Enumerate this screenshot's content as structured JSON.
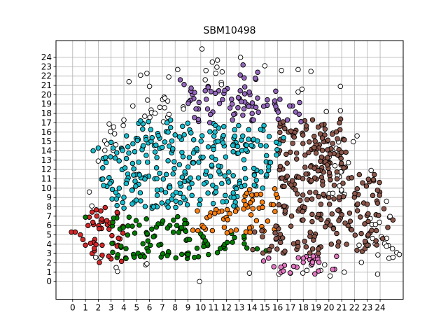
{
  "chart_data": {
    "type": "scatter",
    "title": "SBM10498",
    "xlabel": "",
    "ylabel": "",
    "xlim": [
      -1.3,
      25.8
    ],
    "ylim": [
      -1.9,
      25.8
    ],
    "x_ticks": [
      0,
      1,
      2,
      3,
      4,
      5,
      6,
      7,
      8,
      9,
      10,
      11,
      12,
      13,
      14,
      15,
      16,
      17,
      18,
      19,
      20,
      21,
      22,
      23,
      24
    ],
    "y_ticks": [
      0,
      1,
      2,
      3,
      4,
      5,
      6,
      7,
      8,
      9,
      10,
      11,
      12,
      13,
      14,
      15,
      16,
      17,
      18,
      19,
      20,
      21,
      22,
      23,
      24
    ],
    "grid": true,
    "legend": "none",
    "marker_edge_color": "#000000",
    "series": [
      {
        "color": "#d62728",
        "regions": [
          {
            "x": [
              1.5,
              4
            ],
            "y": [
              2,
              8
            ],
            "density": 2.6
          }
        ],
        "points": [
          [
            -0.1,
            5.3
          ],
          [
            0.2,
            5.3
          ],
          [
            0.6,
            5.0
          ],
          [
            0.8,
            4.5
          ],
          [
            1.0,
            3.9
          ],
          [
            1.2,
            6.0
          ],
          [
            1.3,
            6.9
          ],
          [
            1.4,
            4.1
          ]
        ]
      },
      {
        "color": "#008000",
        "regions": [
          {
            "x": [
              4,
              9
            ],
            "y": [
              2.3,
              7
            ],
            "density": 2.6
          },
          {
            "x": [
              9,
              12
            ],
            "y": [
              2.6,
              5.2
            ],
            "density": 2.4
          },
          {
            "x": [
              12,
              14.5
            ],
            "y": [
              4,
              5.2
            ],
            "density": 2.2
          },
          {
            "x": [
              3,
              4
            ],
            "y": [
              2.2,
              7
            ],
            "density": 2.2
          }
        ],
        "points": [
          [
            1.0,
            6.9
          ],
          [
            3.2,
            6.8
          ],
          [
            9.5,
            2.6
          ],
          [
            10.6,
            2.9
          ],
          [
            11.3,
            3.1
          ],
          [
            13.6,
            3.6
          ],
          [
            14.4,
            3.5
          ],
          [
            15.1,
            3.3
          ]
        ]
      },
      {
        "color": "#ff7f0e",
        "regions": [
          {
            "x": [
              9,
              13
            ],
            "y": [
              5.2,
              7.8
            ],
            "density": 2.5
          },
          {
            "x": [
              13,
              16
            ],
            "y": [
              5.2,
              10
            ],
            "density": 2.5
          }
        ],
        "points": []
      },
      {
        "color": "#e377c2",
        "regions": [
          {
            "x": [
              15.5,
              20.5
            ],
            "y": [
              0.8,
              3
            ],
            "density": 2.3
          }
        ],
        "points": [
          [
            15.3,
            2.5
          ],
          [
            14.9,
            2.2
          ],
          [
            20.3,
            1.3
          ],
          [
            20.6,
            2.7
          ]
        ]
      },
      {
        "color": "#8c564b",
        "regions": [
          {
            "x": [
              16,
              21
            ],
            "y": [
              3,
              17.5
            ],
            "density": 2.6
          },
          {
            "x": [
              21,
              24
            ],
            "y": [
              3.2,
              11.5
            ],
            "density": 2.3
          },
          {
            "x": [
              14,
              16
            ],
            "y": [
              3,
              6
            ],
            "density": 2.2
          },
          {
            "x": [
              19,
              21.5
            ],
            "y": [
              11,
              15.5
            ],
            "density": 2.2
          }
        ],
        "points": [
          [
            24.6,
            5.8
          ],
          [
            25.0,
            6.6
          ],
          [
            24.2,
            4.6
          ],
          [
            24.3,
            7.8
          ],
          [
            23.8,
            8.4
          ]
        ]
      },
      {
        "color": "#17becf",
        "regions": [
          {
            "x": [
              3,
              9
            ],
            "y": [
              7.8,
              15.5
            ],
            "density": 2.6
          },
          {
            "x": [
              9,
              13
            ],
            "y": [
              8,
              17
            ],
            "density": 2.6
          },
          {
            "x": [
              13,
              15.5
            ],
            "y": [
              10,
              17
            ],
            "density": 2.5
          },
          {
            "x": [
              5,
              9
            ],
            "y": [
              15,
              17.5
            ],
            "density": 2.3
          },
          {
            "x": [
              1.5,
              3
            ],
            "y": [
              10,
              13.5
            ],
            "density": 2.0
          },
          {
            "x": [
              15.5,
              16.5
            ],
            "y": [
              13,
              16
            ],
            "density": 1.8
          }
        ],
        "points": [
          [
            1.6,
            14.0
          ],
          [
            2.0,
            14.3
          ],
          [
            3.0,
            14.9
          ],
          [
            4.2,
            15.6
          ]
        ]
      },
      {
        "color": "#9467bd",
        "regions": [
          {
            "x": [
              9,
              16.5
            ],
            "y": [
              17,
              21
            ],
            "density": 2.4
          },
          {
            "x": [
              12.5,
              14.5
            ],
            "y": [
              21,
              22.5
            ],
            "density": 1.8
          },
          {
            "x": [
              16.5,
              18
            ],
            "y": [
              17,
              19.5
            ],
            "density": 1.8
          }
        ],
        "points": [
          [
            8.4,
            21.6
          ],
          [
            8.7,
            21.1
          ],
          [
            13.3,
            23.2
          ]
        ]
      },
      {
        "color": "#ffffff",
        "regions": [
          {
            "x": [
              5.5,
              9
            ],
            "y": [
              17,
              20
            ],
            "density": 1.6
          },
          {
            "x": [
              2,
              4
            ],
            "y": [
              13,
              17
            ],
            "density": 1.2
          },
          {
            "x": [
              20,
              22
            ],
            "y": [
              9,
              15
            ],
            "density": 1.4
          },
          {
            "x": [
              22,
              25
            ],
            "y": [
              2,
              7
            ],
            "density": 1.4
          },
          {
            "x": [
              10,
              12
            ],
            "y": [
              20,
              23
            ],
            "density": 1.2
          },
          {
            "x": [
              17,
              20
            ],
            "y": [
              0.8,
              2
            ],
            "density": 1.3
          }
        ],
        "points": [
          [
            10.1,
            24.9
          ],
          [
            11.3,
            23.7
          ],
          [
            10.9,
            23.5
          ],
          [
            13.1,
            24.0
          ],
          [
            15.0,
            23.1
          ],
          [
            16.3,
            22.6
          ],
          [
            17.6,
            22.7
          ],
          [
            18.6,
            22.5
          ],
          [
            5.3,
            22.1
          ],
          [
            5.8,
            22.3
          ],
          [
            8.2,
            22.7
          ],
          [
            4.4,
            21.4
          ],
          [
            6.0,
            20.9
          ],
          [
            7.5,
            21.9
          ],
          [
            20.9,
            20.9
          ],
          [
            20.9,
            18.3
          ],
          [
            17.6,
            20.3
          ],
          [
            17.9,
            20.6
          ],
          [
            19.8,
            18.2
          ],
          [
            22.2,
            15.6
          ],
          [
            20.3,
            15.9
          ],
          [
            23.3,
            11.9
          ],
          [
            24.5,
            8.6
          ],
          [
            25.3,
            3.1
          ],
          [
            25.5,
            2.9
          ],
          [
            25.0,
            2.6
          ],
          [
            23.8,
            0.8
          ],
          [
            21.2,
            1.0
          ],
          [
            20.1,
            0.6
          ],
          [
            17.0,
            0.9
          ],
          [
            16.1,
            0.8
          ],
          [
            13.8,
            0.9
          ],
          [
            3.5,
            1.1
          ],
          [
            3.4,
            1.5
          ],
          [
            5.7,
            1.8
          ],
          [
            5.8,
            1.9
          ],
          [
            9.9,
            0.0
          ],
          [
            1.3,
            9.6
          ],
          [
            1.5,
            8.1
          ],
          [
            2.0,
            12.9
          ],
          [
            4.0,
            17.3
          ],
          [
            4.7,
            18.8
          ],
          [
            2.2,
            2.6
          ],
          [
            1.8,
            2.6
          ]
        ]
      }
    ]
  }
}
